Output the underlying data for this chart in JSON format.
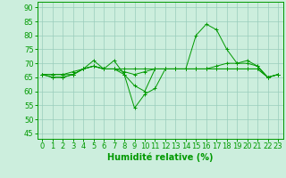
{
  "xlabel": "Humidité relative (%)",
  "xlim": [
    -0.5,
    23.5
  ],
  "ylim": [
    43,
    92
  ],
  "yticks": [
    45,
    50,
    55,
    60,
    65,
    70,
    75,
    80,
    85,
    90
  ],
  "xticks": [
    0,
    1,
    2,
    3,
    4,
    5,
    6,
    7,
    8,
    9,
    10,
    11,
    12,
    13,
    14,
    15,
    16,
    17,
    18,
    19,
    20,
    21,
    22,
    23
  ],
  "bg_color": "#cceedd",
  "grid_color": "#99ccbb",
  "line_color": "#009900",
  "line1": [
    66,
    66,
    66,
    66,
    68,
    71,
    68,
    71,
    66,
    54,
    59,
    61,
    68,
    68,
    68,
    80,
    84,
    82,
    75,
    70,
    71,
    69,
    65,
    66
  ],
  "line2": [
    66,
    66,
    66,
    67,
    68,
    69,
    68,
    68,
    67,
    66,
    67,
    68,
    68,
    68,
    68,
    68,
    68,
    69,
    70,
    70,
    70,
    69,
    65,
    66
  ],
  "line3": [
    66,
    65,
    65,
    66,
    68,
    69,
    68,
    68,
    68,
    68,
    68,
    68,
    68,
    68,
    68,
    68,
    68,
    68,
    68,
    68,
    68,
    68,
    65,
    66
  ],
  "line4": [
    66,
    65,
    65,
    66,
    68,
    69,
    68,
    68,
    66,
    62,
    60,
    68,
    68,
    68,
    68,
    68,
    68,
    68,
    68,
    68,
    68,
    68,
    65,
    66
  ],
  "xlabel_fontsize": 7,
  "tick_fontsize": 6
}
